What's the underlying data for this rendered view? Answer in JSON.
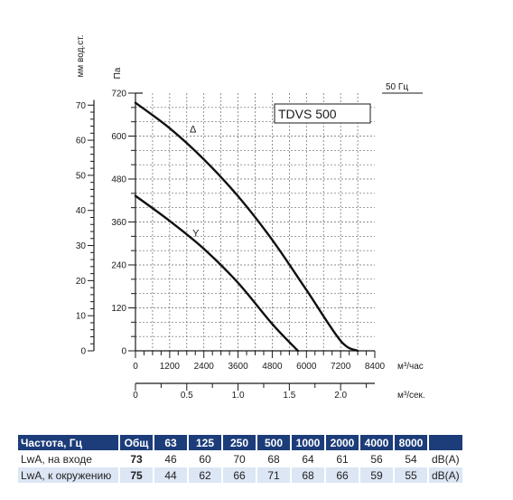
{
  "chart_data": {
    "type": "line",
    "model_label": "TDVS 500",
    "frequency_label": "50 Гц",
    "y_left_unit": "мм вод.ст.",
    "y_right_unit": "Па",
    "x_unit_primary": "м³/час",
    "x_unit_secondary": "м³/сек.",
    "x_ticks_primary": [
      0,
      1200,
      2400,
      3600,
      4800,
      6000,
      7200,
      8400
    ],
    "x_ticks_secondary": [
      0,
      0.5,
      1.0,
      1.5,
      2.0
    ],
    "x_ticks_secondary_labels": [
      "0",
      "0.5",
      "1.0",
      "1.5",
      "2.0"
    ],
    "y_ticks_pa": [
      0,
      120,
      240,
      360,
      480,
      600,
      720
    ],
    "y_ticks_mm": [
      0,
      10,
      20,
      30,
      40,
      50,
      60,
      70
    ],
    "xlim": [
      0,
      8400
    ],
    "ylim_pa": [
      0,
      720
    ],
    "grid": true,
    "series": [
      {
        "name": "Δ",
        "x": [
          0,
          1200,
          2400,
          3600,
          4800,
          6000,
          7200,
          7800
        ],
        "y": [
          693,
          622,
          535,
          432,
          310,
          170,
          28,
          0
        ]
      },
      {
        "name": "Y",
        "x": [
          0,
          1200,
          2400,
          3600,
          4800,
          5700
        ],
        "y": [
          433,
          363,
          285,
          190,
          75,
          0
        ]
      }
    ]
  },
  "table": {
    "header": [
      "Частота, Гц",
      "Общ",
      "63",
      "125",
      "250",
      "500",
      "1000",
      "2000",
      "4000",
      "8000",
      ""
    ],
    "rows": [
      [
        "LwA, на входе",
        "73",
        "46",
        "60",
        "70",
        "68",
        "64",
        "61",
        "56",
        "54",
        "dB(A)"
      ],
      [
        "LwA, к окружению",
        "75",
        "44",
        "62",
        "66",
        "71",
        "68",
        "66",
        "59",
        "55",
        "dB(A)"
      ]
    ]
  }
}
